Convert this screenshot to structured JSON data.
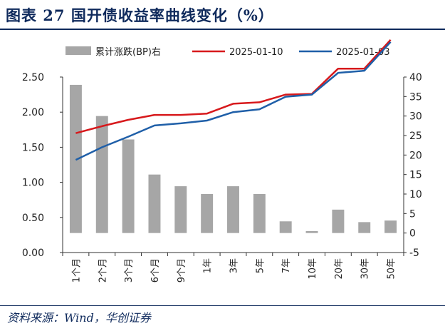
{
  "figure": {
    "title": "图表 27   国开债收益率曲线变化（%）",
    "source": "资料来源：Wind，华创证券"
  },
  "chart_data": {
    "type": "bar+line",
    "categories": [
      "1个月",
      "2个月",
      "3个月",
      "6个月",
      "9个月",
      "1年",
      "3年",
      "5年",
      "7年",
      "10年",
      "20年",
      "30年",
      "50年"
    ],
    "series": [
      {
        "name": "累计涨跌(BP)右",
        "kind": "bar",
        "axis": "right",
        "color": "#a6a6a6",
        "values": [
          38,
          30,
          24,
          15,
          12,
          10,
          12,
          10,
          3,
          0.5,
          6,
          2.8,
          3.2
        ]
      },
      {
        "name": "2025-01-10",
        "kind": "line",
        "axis": "left",
        "color": "#d7191c",
        "values": [
          1.7,
          1.8,
          1.89,
          1.96,
          1.96,
          1.98,
          2.12,
          2.14,
          2.25,
          2.26,
          2.62,
          2.62,
          3.03
        ]
      },
      {
        "name": "2025-01-03",
        "kind": "line",
        "axis": "left",
        "color": "#1f5fa8",
        "values": [
          1.32,
          1.5,
          1.65,
          1.81,
          1.84,
          1.88,
          2.0,
          2.04,
          2.22,
          2.25,
          2.56,
          2.59,
          3.0
        ]
      }
    ],
    "y_left": {
      "min": 0.0,
      "max": 2.5,
      "ticks": [
        "0.00",
        "0.50",
        "1.00",
        "1.50",
        "2.00",
        "2.50"
      ]
    },
    "y_right": {
      "min": -5,
      "max": 40,
      "ticks": [
        "-5",
        "0",
        "5",
        "10",
        "15",
        "20",
        "25",
        "30",
        "35",
        "40"
      ]
    },
    "legend": {
      "placement": "top"
    }
  }
}
